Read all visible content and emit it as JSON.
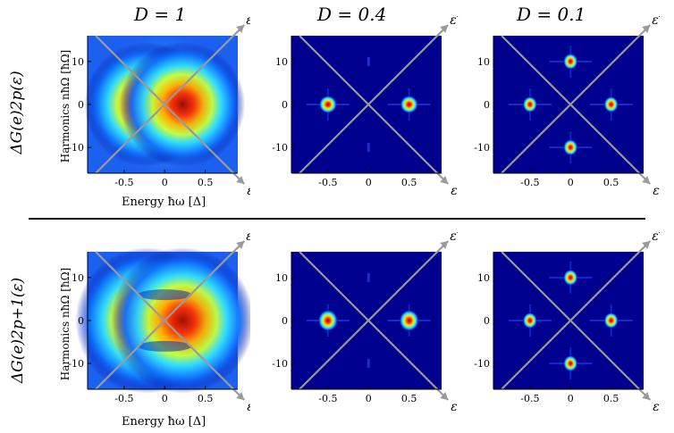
{
  "figure": {
    "columns": [
      "D = 1",
      "D = 0.4",
      "D = 0.1"
    ],
    "row_labels": [
      "ΔG(e)2p(ε)",
      "ΔG(e)2p+1(ε)"
    ],
    "ylabel": "Harmonics nħΩ   [ħΩ]",
    "xlabel": "Energy ħω   [Δ]",
    "axis_eps": "ε",
    "axis_eps_prime": "ε′",
    "colors": {
      "cold": "#00008f",
      "hot": "#800000",
      "diag": "#9a9a9a"
    }
  },
  "chart_data": [
    {
      "type": "heatmap",
      "row": "even",
      "column": "D = 1",
      "x_ticks": [
        -0.5,
        0,
        0.5
      ],
      "y_ticks": [
        -10,
        0,
        10
      ],
      "xlim": [
        -0.95,
        0.9
      ],
      "ylim": [
        -16,
        16
      ],
      "peaks": []
    },
    {
      "type": "heatmap",
      "row": "even",
      "column": "D = 0.4",
      "x_ticks": [
        -0.5,
        0,
        0.5
      ],
      "y_ticks": [
        -10,
        0,
        10
      ],
      "xlim": [
        -0.95,
        0.9
      ],
      "ylim": [
        -16,
        16
      ],
      "peaks": [
        {
          "x": -0.5,
          "y": 0
        },
        {
          "x": 0.5,
          "y": 0
        }
      ]
    },
    {
      "type": "heatmap",
      "row": "even",
      "column": "D = 0.1",
      "x_ticks": [
        -0.5,
        0,
        0.5
      ],
      "y_ticks": [
        -10,
        0,
        10
      ],
      "xlim": [
        -0.95,
        0.9
      ],
      "ylim": [
        -16,
        16
      ],
      "peaks": [
        {
          "x": 0,
          "y": 10
        },
        {
          "x": 0,
          "y": -10
        },
        {
          "x": -0.5,
          "y": 0
        },
        {
          "x": 0.5,
          "y": 0
        }
      ]
    },
    {
      "type": "heatmap",
      "row": "odd",
      "column": "D = 1",
      "x_ticks": [
        -0.5,
        0,
        0.5
      ],
      "y_ticks": [
        -10,
        0,
        10
      ],
      "xlim": [
        -0.95,
        0.9
      ],
      "ylim": [
        -16,
        16
      ],
      "peaks": []
    },
    {
      "type": "heatmap",
      "row": "odd",
      "column": "D = 0.4",
      "x_ticks": [
        -0.5,
        0,
        0.5
      ],
      "y_ticks": [
        -10,
        0,
        10
      ],
      "xlim": [
        -0.95,
        0.9
      ],
      "ylim": [
        -16,
        16
      ],
      "peaks": [
        {
          "x": -0.5,
          "y": 0
        },
        {
          "x": 0.5,
          "y": 0
        }
      ]
    },
    {
      "type": "heatmap",
      "row": "odd",
      "column": "D = 0.1",
      "x_ticks": [
        -0.5,
        0,
        0.5
      ],
      "y_ticks": [
        -10,
        0,
        10
      ],
      "xlim": [
        -0.95,
        0.9
      ],
      "ylim": [
        -16,
        16
      ],
      "peaks": [
        {
          "x": 0,
          "y": 10
        },
        {
          "x": 0,
          "y": -10
        },
        {
          "x": -0.5,
          "y": 0
        },
        {
          "x": 0.5,
          "y": 0
        }
      ]
    }
  ]
}
